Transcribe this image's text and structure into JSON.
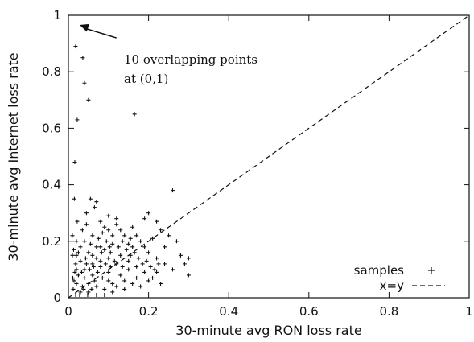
{
  "chart_data": {
    "type": "scatter",
    "xlabel": "30-minute avg RON loss rate",
    "ylabel": "30-minute avg Internet loss rate",
    "xlim": [
      0,
      1
    ],
    "ylim": [
      0,
      1
    ],
    "xticks": [
      "0",
      "0.2",
      "0.4",
      "0.6",
      "0.8",
      "1"
    ],
    "yticks": [
      "0",
      "0.2",
      "0.4",
      "0.6",
      "0.8",
      "1"
    ],
    "grid": false,
    "legend_position": "bottom-right",
    "series": [
      {
        "name": "samples",
        "marker": "plus",
        "color": "#111111",
        "points": [
          [
            0.012,
            0.03
          ],
          [
            0.014,
            0.06
          ],
          [
            0.016,
            0.09
          ],
          [
            0.018,
            0.12
          ],
          [
            0.02,
            0.15
          ],
          [
            0.02,
            0.2
          ],
          [
            0.022,
            0.27
          ],
          [
            0.016,
            0.48
          ],
          [
            0.022,
            0.63
          ],
          [
            0.018,
            0.89
          ],
          [
            0.036,
            0.85
          ],
          [
            0.04,
            0.76
          ],
          [
            0.05,
            0.7
          ],
          [
            0.165,
            0.65
          ],
          [
            0.055,
            0.35
          ],
          [
            0.07,
            0.34
          ],
          [
            0.065,
            0.32
          ],
          [
            0.045,
            0.3
          ],
          [
            0.1,
            0.29
          ],
          [
            0.12,
            0.28
          ],
          [
            0.19,
            0.28
          ],
          [
            0.2,
            0.3
          ],
          [
            0.22,
            0.27
          ],
          [
            0.26,
            0.38
          ],
          [
            0.25,
            0.22
          ],
          [
            0.24,
            0.18
          ],
          [
            0.28,
            0.15
          ],
          [
            0.3,
            0.14
          ],
          [
            0.29,
            0.12
          ],
          [
            0.3,
            0.08
          ],
          [
            0.26,
            0.1
          ],
          [
            0.22,
            0.14
          ],
          [
            0.2,
            0.16
          ],
          [
            0.18,
            0.2
          ],
          [
            0.16,
            0.25
          ],
          [
            0.14,
            0.22
          ],
          [
            0.12,
            0.26
          ],
          [
            0.1,
            0.24
          ],
          [
            0.08,
            0.27
          ],
          [
            0.06,
            0.22
          ],
          [
            0.04,
            0.2
          ],
          [
            0.03,
            0.18
          ],
          [
            0.05,
            0.16
          ],
          [
            0.07,
            0.14
          ],
          [
            0.09,
            0.17
          ],
          [
            0.11,
            0.19
          ],
          [
            0.13,
            0.15
          ],
          [
            0.15,
            0.13
          ],
          [
            0.17,
            0.11
          ],
          [
            0.19,
            0.09
          ],
          [
            0.21,
            0.07
          ],
          [
            0.23,
            0.05
          ],
          [
            0.18,
            0.04
          ],
          [
            0.14,
            0.06
          ],
          [
            0.1,
            0.09
          ],
          [
            0.08,
            0.11
          ],
          [
            0.06,
            0.08
          ],
          [
            0.04,
            0.1
          ],
          [
            0.03,
            0.13
          ],
          [
            0.05,
            0.05
          ],
          [
            0.07,
            0.04
          ],
          [
            0.09,
            0.03
          ],
          [
            0.11,
            0.05
          ],
          [
            0.13,
            0.08
          ],
          [
            0.15,
            0.1
          ],
          [
            0.17,
            0.07
          ],
          [
            0.12,
            0.12
          ],
          [
            0.1,
            0.14
          ],
          [
            0.08,
            0.18
          ],
          [
            0.06,
            0.12
          ],
          [
            0.04,
            0.07
          ],
          [
            0.02,
            0.05
          ],
          [
            0.03,
            0.02
          ],
          [
            0.05,
            0.02
          ],
          [
            0.07,
            0.01
          ],
          [
            0.09,
            0.01
          ],
          [
            0.11,
            0.02
          ],
          [
            0.02,
            0.1
          ],
          [
            0.035,
            0.24
          ],
          [
            0.045,
            0.26
          ],
          [
            0.055,
            0.19
          ],
          [
            0.075,
            0.21
          ],
          [
            0.085,
            0.23
          ],
          [
            0.095,
            0.2
          ],
          [
            0.105,
            0.16
          ],
          [
            0.125,
            0.18
          ],
          [
            0.135,
            0.2
          ],
          [
            0.145,
            0.17
          ],
          [
            0.155,
            0.21
          ],
          [
            0.165,
            0.16
          ],
          [
            0.175,
            0.14
          ],
          [
            0.185,
            0.12
          ],
          [
            0.195,
            0.13
          ],
          [
            0.205,
            0.11
          ],
          [
            0.215,
            0.1
          ],
          [
            0.225,
            0.12
          ],
          [
            0.015,
            0.35
          ],
          [
            0.01,
            0.22
          ],
          [
            0.025,
            0.08
          ],
          [
            0.035,
            0.04
          ],
          [
            0.045,
            0.12
          ],
          [
            0.065,
            0.06
          ],
          [
            0.085,
            0.07
          ],
          [
            0.105,
            0.11
          ],
          [
            0.115,
            0.13
          ],
          [
            0.135,
            0.11
          ],
          [
            0.155,
            0.15
          ],
          [
            0.16,
            0.18
          ],
          [
            0.17,
            0.22
          ],
          [
            0.15,
            0.19
          ],
          [
            0.13,
            0.24
          ],
          [
            0.11,
            0.22
          ],
          [
            0.09,
            0.25
          ],
          [
            0.07,
            0.18
          ],
          [
            0.06,
            0.15
          ],
          [
            0.08,
            0.13
          ],
          [
            0.1,
            0.06
          ],
          [
            0.12,
            0.04
          ],
          [
            0.14,
            0.03
          ],
          [
            0.16,
            0.05
          ],
          [
            0.2,
            0.06
          ],
          [
            0.22,
            0.09
          ],
          [
            0.24,
            0.12
          ],
          [
            0.27,
            0.2
          ],
          [
            0.23,
            0.24
          ],
          [
            0.21,
            0.21
          ],
          [
            0.19,
            0.18
          ],
          [
            0.018,
            0.01
          ],
          [
            0.028,
            0.01
          ],
          [
            0.038,
            0.03
          ],
          [
            0.048,
            0.01
          ],
          [
            0.058,
            0.03
          ],
          [
            0.01,
            0.15
          ],
          [
            0.013,
            0.17
          ],
          [
            0.011,
            0.07
          ],
          [
            0.025,
            0.16
          ],
          [
            0.033,
            0.09
          ],
          [
            0.043,
            0.14
          ],
          [
            0.053,
            0.1
          ],
          [
            0.063,
            0.11
          ],
          [
            0.073,
            0.09
          ],
          [
            0.083,
            0.16
          ],
          [
            0.093,
            0.12
          ],
          [
            0.103,
            0.18
          ]
        ]
      },
      {
        "name": "x=y",
        "style": "dashed",
        "color": "#111111",
        "x": [
          0,
          1
        ],
        "y": [
          0,
          1
        ]
      }
    ],
    "annotations": [
      {
        "text_lines": [
          "10 overlapping points",
          "at (0,1)"
        ],
        "points_to": [
          0,
          1
        ],
        "from": [
          0.12,
          0.92
        ]
      }
    ]
  }
}
